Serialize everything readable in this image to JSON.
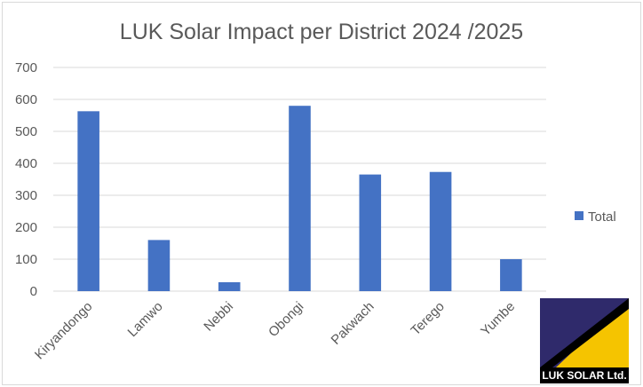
{
  "chart_data": {
    "type": "bar",
    "title": "LUK Solar Impact per District 2024 /2025",
    "categories": [
      "Kiryandongo",
      "Lamwo",
      "Nebbi",
      "Obongi",
      "Pakwach",
      "Terego",
      "Yumbe"
    ],
    "series": [
      {
        "name": "Total",
        "values": [
          563,
          160,
          28,
          580,
          365,
          373,
          100
        ],
        "color": "#4472c4"
      }
    ],
    "ylim": [
      0,
      700
    ],
    "yticks": [
      "0",
      "100",
      "200",
      "300",
      "400",
      "500",
      "600",
      "700"
    ],
    "grid": true,
    "legend_position": "right"
  },
  "logo": {
    "text": "LUK SOLAR Ltd.",
    "colors": {
      "primary": "#2f2a6b",
      "accent": "#f5c400",
      "band": "#000000"
    }
  }
}
